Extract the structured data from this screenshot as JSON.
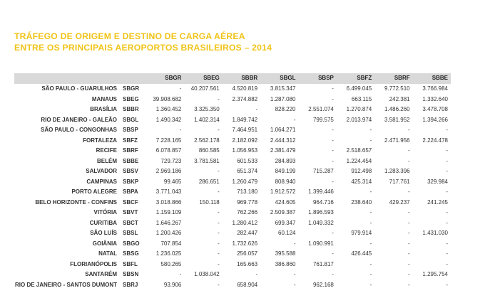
{
  "title": {
    "line1": "TRÁFEGO DE ORIGEM E DESTINO DE CARGA AÉREA",
    "line2": "ENTRE OS PRINCIPAIS AEROPORTOS BRASILEIROS – 2014"
  },
  "table": {
    "columns": [
      "SBGR",
      "SBEG",
      "SBBR",
      "SBGL",
      "SBSP",
      "SBFZ",
      "SBRF",
      "SBBE"
    ],
    "rows": [
      {
        "name": "SÃO PAULO - GUARULHOS",
        "code": "SBGR",
        "values": [
          "-",
          "40.207.561",
          "4.520.819",
          "3.815.347",
          "-",
          "6.499.045",
          "9.772.510",
          "3.766.984"
        ]
      },
      {
        "name": "MANAUS",
        "code": "SBEG",
        "values": [
          "39.908.682",
          "-",
          "2.374.882",
          "1.287.080",
          "-",
          "663.115",
          "242.381",
          "1.332.640"
        ]
      },
      {
        "name": "BRASÍLIA",
        "code": "SBBR",
        "values": [
          "1.360.452",
          "3.325.350",
          "-",
          "828.220",
          "2.551.074",
          "1.270.874",
          "1.486.260",
          "3.478.708"
        ]
      },
      {
        "name": "RIO DE JANEIRO - GALEÃO",
        "code": "SBGL",
        "values": [
          "1.490.342",
          "1.402.314",
          "1.849.742",
          "-",
          "799.575",
          "2.013.974",
          "3.581.952",
          "1.394.266"
        ]
      },
      {
        "name": "SÃO PAULO - CONGONHAS",
        "code": "SBSP",
        "values": [
          "-",
          "-",
          "7.464.951",
          "1.064.271",
          "-",
          "-",
          "-",
          "-"
        ]
      },
      {
        "name": "FORTALEZA",
        "code": "SBFZ",
        "values": [
          "7.228.165",
          "2.562.178",
          "2.182.092",
          "2.444.312",
          "-",
          "-",
          "2.471.956",
          "2.224.478"
        ]
      },
      {
        "name": "RECIFE",
        "code": "SBRF",
        "values": [
          "6.078.857",
          "860.585",
          "1.056.953",
          "2.381.479",
          "-",
          "2.518.657",
          "-",
          "-"
        ]
      },
      {
        "name": "BELÉM",
        "code": "SBBE",
        "values": [
          "729.723",
          "3.781.581",
          "601.533",
          "284.893",
          "-",
          "1.224.454",
          "-",
          "-"
        ]
      },
      {
        "name": "SALVADOR",
        "code": "SBSV",
        "values": [
          "2.969.186",
          "-",
          "651.374",
          "849.199",
          "715.287",
          "912.498",
          "1.283.396",
          "-"
        ]
      },
      {
        "name": "CAMPINAS",
        "code": "SBKP",
        "values": [
          "99.465",
          "286.651",
          "1.260.479",
          "808.940",
          "-",
          "425.314",
          "717.761",
          "329.984"
        ]
      },
      {
        "name": "PORTO ALEGRE",
        "code": "SBPA",
        "values": [
          "3.771.043",
          "-",
          "713.180",
          "1.912.572",
          "1.399.446",
          "-",
          "-",
          "-"
        ]
      },
      {
        "name": "BELO HORIZONTE - CONFINS",
        "code": "SBCF",
        "values": [
          "3.018.866",
          "150.118",
          "969.778",
          "424.605",
          "964.716",
          "238.640",
          "429.237",
          "241.245"
        ]
      },
      {
        "name": "VITÓRIA",
        "code": "SBVT",
        "values": [
          "1.159.109",
          "-",
          "762.266",
          "2.509.387",
          "1.896.593",
          "-",
          "-",
          "-"
        ]
      },
      {
        "name": "CURITIBA",
        "code": "SBCT",
        "values": [
          "1.646.267",
          "-",
          "1.280.412",
          "699.347",
          "1.049.332",
          "-",
          "-",
          "-"
        ]
      },
      {
        "name": "SÃO LUÍS",
        "code": "SBSL",
        "values": [
          "1.200.426",
          "-",
          "282.447",
          "60.124",
          "-",
          "979.914",
          "-",
          "1.431.030"
        ]
      },
      {
        "name": "GOIÂNIA",
        "code": "SBGO",
        "values": [
          "707.854",
          "-",
          "1.732.626",
          "-",
          "1.090.991",
          "-",
          "-",
          "-"
        ]
      },
      {
        "name": "NATAL",
        "code": "SBSG",
        "values": [
          "1.236.025",
          "-",
          "256.057",
          "395.588",
          "-",
          "426.445",
          "-",
          "-"
        ]
      },
      {
        "name": "FLORIANÓPOLIS",
        "code": "SBFL",
        "values": [
          "580.265",
          "-",
          "165.663",
          "386.860",
          "761.817",
          "-",
          "-",
          "-"
        ]
      },
      {
        "name": "SANTARÉM",
        "code": "SBSN",
        "values": [
          "-",
          "1.038.042",
          "-",
          "-",
          "-",
          "-",
          "-",
          "1.295.754"
        ]
      },
      {
        "name": "RIO DE JANEIRO - SANTOS DUMONT",
        "code": "SBRJ",
        "values": [
          "93.906",
          "-",
          "658.904",
          "-",
          "962.168",
          "-",
          "-",
          "-"
        ]
      }
    ]
  }
}
